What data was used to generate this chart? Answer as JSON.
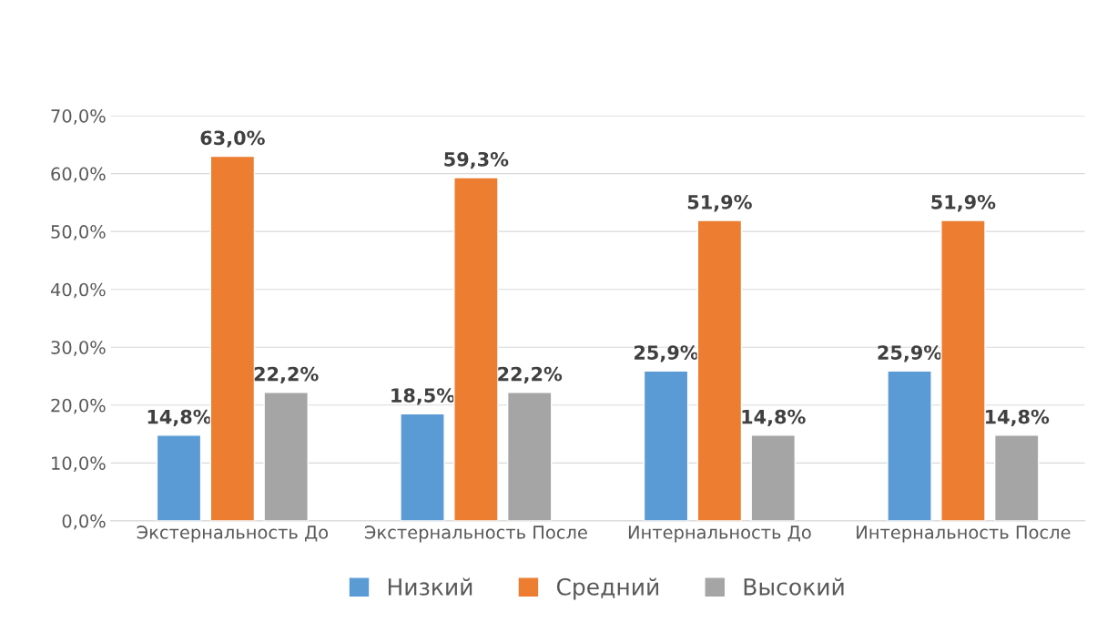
{
  "chart_data": {
    "type": "bar",
    "categories": [
      "Экстернальность До",
      "Экстернальность После",
      "Интернальность До",
      "Интернальность После"
    ],
    "series": [
      {
        "name": "Низкий",
        "color": "#5b9bd5",
        "values": [
          14.8,
          18.5,
          25.9,
          25.9
        ],
        "value_labels": [
          "14,8%",
          "18,5%",
          "25,9%",
          "25,9%"
        ]
      },
      {
        "name": "Средний",
        "color": "#ed7d31",
        "values": [
          63.0,
          59.3,
          51.9,
          51.9
        ],
        "value_labels": [
          "63,0%",
          "59,3%",
          "51,9%",
          "51,9%"
        ]
      },
      {
        "name": "Высокий",
        "color": "#a5a5a5",
        "values": [
          22.2,
          22.2,
          14.8,
          14.8
        ],
        "value_labels": [
          "22,2%",
          "22,2%",
          "14,8%",
          "14,8%"
        ]
      }
    ],
    "ylim": [
      0,
      70
    ],
    "yticks": [
      {
        "value": 0,
        "label": "0,0%"
      },
      {
        "value": 10,
        "label": "10,0%"
      },
      {
        "value": 20,
        "label": "20,0%"
      },
      {
        "value": 30,
        "label": "30,0%"
      },
      {
        "value": 40,
        "label": "40,0%"
      },
      {
        "value": 50,
        "label": "50,0%"
      },
      {
        "value": 60,
        "label": "60,0%"
      },
      {
        "value": 70,
        "label": "70,0%"
      }
    ],
    "grid": "y",
    "legend": "bottom"
  }
}
